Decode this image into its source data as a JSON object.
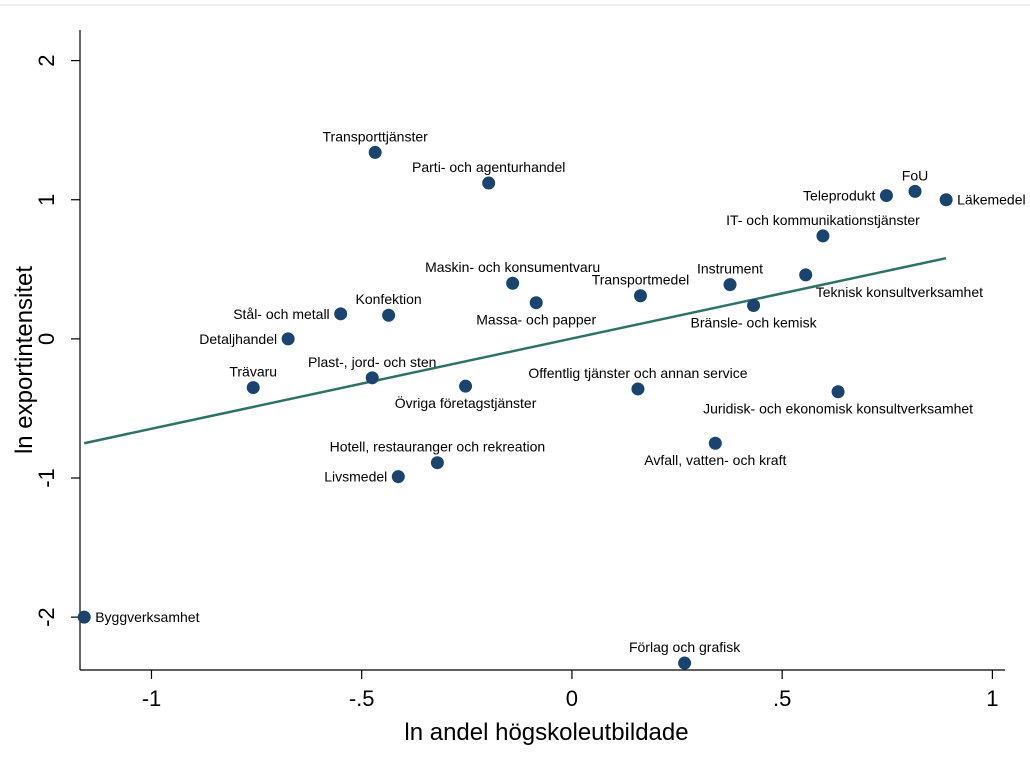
{
  "chart_data": {
    "type": "scatter",
    "title": "",
    "xlabel": "ln andel högskoleutbildade",
    "ylabel": "ln exportintensitet",
    "xlim": [
      -1.17,
      1.03
    ],
    "ylim": [
      -2.38,
      2.22
    ],
    "xticks": [
      -1,
      -0.5,
      0,
      0.5,
      1
    ],
    "xtick_labels": [
      "-1",
      "-.5",
      "0",
      ".5",
      "1"
    ],
    "yticks": [
      -2,
      -1,
      0,
      1,
      2
    ],
    "ytick_labels": [
      "-2",
      "-1",
      "0",
      "1",
      "2"
    ],
    "grid": false,
    "legend": "none",
    "point_color": "#1a446e",
    "line_color": "#2e7266",
    "fit_line": {
      "x": [
        -1.16,
        0.89
      ],
      "y": [
        -0.75,
        0.58
      ]
    },
    "points": [
      {
        "label": "Transporttjänster",
        "x": -0.468,
        "y": 1.34,
        "pos": "above"
      },
      {
        "label": "Parti- och agenturhandel",
        "x": -0.198,
        "y": 1.12,
        "pos": "above"
      },
      {
        "label": "FoU",
        "x": 0.816,
        "y": 1.06,
        "pos": "above"
      },
      {
        "label": "Teleprodukt",
        "x": 0.748,
        "y": 1.03,
        "pos": "left"
      },
      {
        "label": "Läkemedel",
        "x": 0.89,
        "y": 1.0,
        "pos": "right"
      },
      {
        "label": "IT- och kommunikationstjänster",
        "x": 0.597,
        "y": 0.74,
        "pos": "above"
      },
      {
        "label": "Instrument",
        "x": 0.376,
        "y": 0.39,
        "pos": "above"
      },
      {
        "label": "Teknisk konsultverksamhet",
        "x": 0.556,
        "y": 0.46,
        "pos": "below-right"
      },
      {
        "label": "Maskin- och konsumentvaru",
        "x": -0.141,
        "y": 0.4,
        "pos": "above"
      },
      {
        "label": "Transportmedel",
        "x": 0.163,
        "y": 0.31,
        "pos": "above"
      },
      {
        "label": "Bränsle- och kemisk",
        "x": 0.432,
        "y": 0.24,
        "pos": "below"
      },
      {
        "label": "Massa- och papper",
        "x": -0.085,
        "y": 0.26,
        "pos": "below"
      },
      {
        "label": "Stål- och metall",
        "x": -0.55,
        "y": 0.18,
        "pos": "left"
      },
      {
        "label": "Konfektion",
        "x": -0.436,
        "y": 0.17,
        "pos": "above"
      },
      {
        "label": "Detaljhandel",
        "x": -0.675,
        "y": 0.0,
        "pos": "left"
      },
      {
        "label": "Plast-, jord- och sten",
        "x": -0.475,
        "y": -0.28,
        "pos": "above"
      },
      {
        "label": "Trävaru",
        "x": -0.758,
        "y": -0.35,
        "pos": "above"
      },
      {
        "label": "Övriga företagstjänster",
        "x": -0.253,
        "y": -0.34,
        "pos": "below"
      },
      {
        "label": "Offentlig tjänster och annan service",
        "x": 0.157,
        "y": -0.36,
        "pos": "above"
      },
      {
        "label": "Juridisk- och ekonomisk konsultverksamhet",
        "x": 0.633,
        "y": -0.38,
        "pos": "below"
      },
      {
        "label": "Hotell, restauranger och rekreation",
        "x": -0.32,
        "y": -0.89,
        "pos": "above"
      },
      {
        "label": "Avfall, vatten- och kraft",
        "x": 0.341,
        "y": -0.75,
        "pos": "below"
      },
      {
        "label": "Livsmedel",
        "x": -0.413,
        "y": -0.99,
        "pos": "left"
      },
      {
        "label": "Byggverksamhet",
        "x": -1.16,
        "y": -2.0,
        "pos": "right"
      },
      {
        "label": "Förlag och grafisk",
        "x": 0.268,
        "y": -2.33,
        "pos": "above"
      }
    ]
  }
}
